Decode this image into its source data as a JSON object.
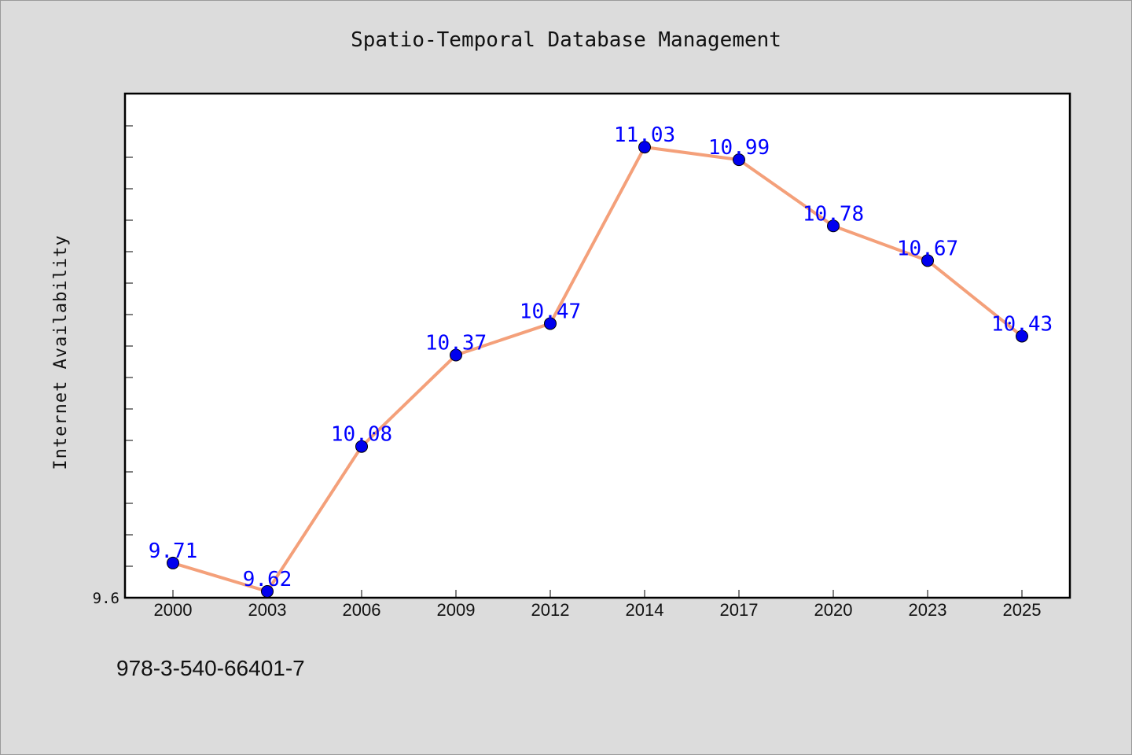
{
  "chart_data": {
    "type": "line",
    "title": "Spatio-Temporal Database Management",
    "xlabel": "",
    "ylabel": "Internet Availability",
    "categories": [
      "2000",
      "2003",
      "2006",
      "2009",
      "2012",
      "2014",
      "2017",
      "2020",
      "2023",
      "2025"
    ],
    "series": [
      {
        "values": [
          9.71,
          9.62,
          10.08,
          10.37,
          10.47,
          11.03,
          10.99,
          10.78,
          10.67,
          10.43
        ],
        "labels": [
          "9.71",
          "9.62",
          "10.08",
          "10.37",
          "10.47",
          "11.03",
          "10.99",
          "10.78",
          "10.67",
          "10.43"
        ],
        "line_color": "#f4a07a",
        "marker_color": "#0000ee",
        "label_color": "#0000ff"
      }
    ],
    "ylim": [
      9.6,
      11.2
    ],
    "ytick_labels": [
      "9.6"
    ],
    "grid": false,
    "legend": "none"
  },
  "footer": {
    "code": "978-3-540-66401-7"
  }
}
